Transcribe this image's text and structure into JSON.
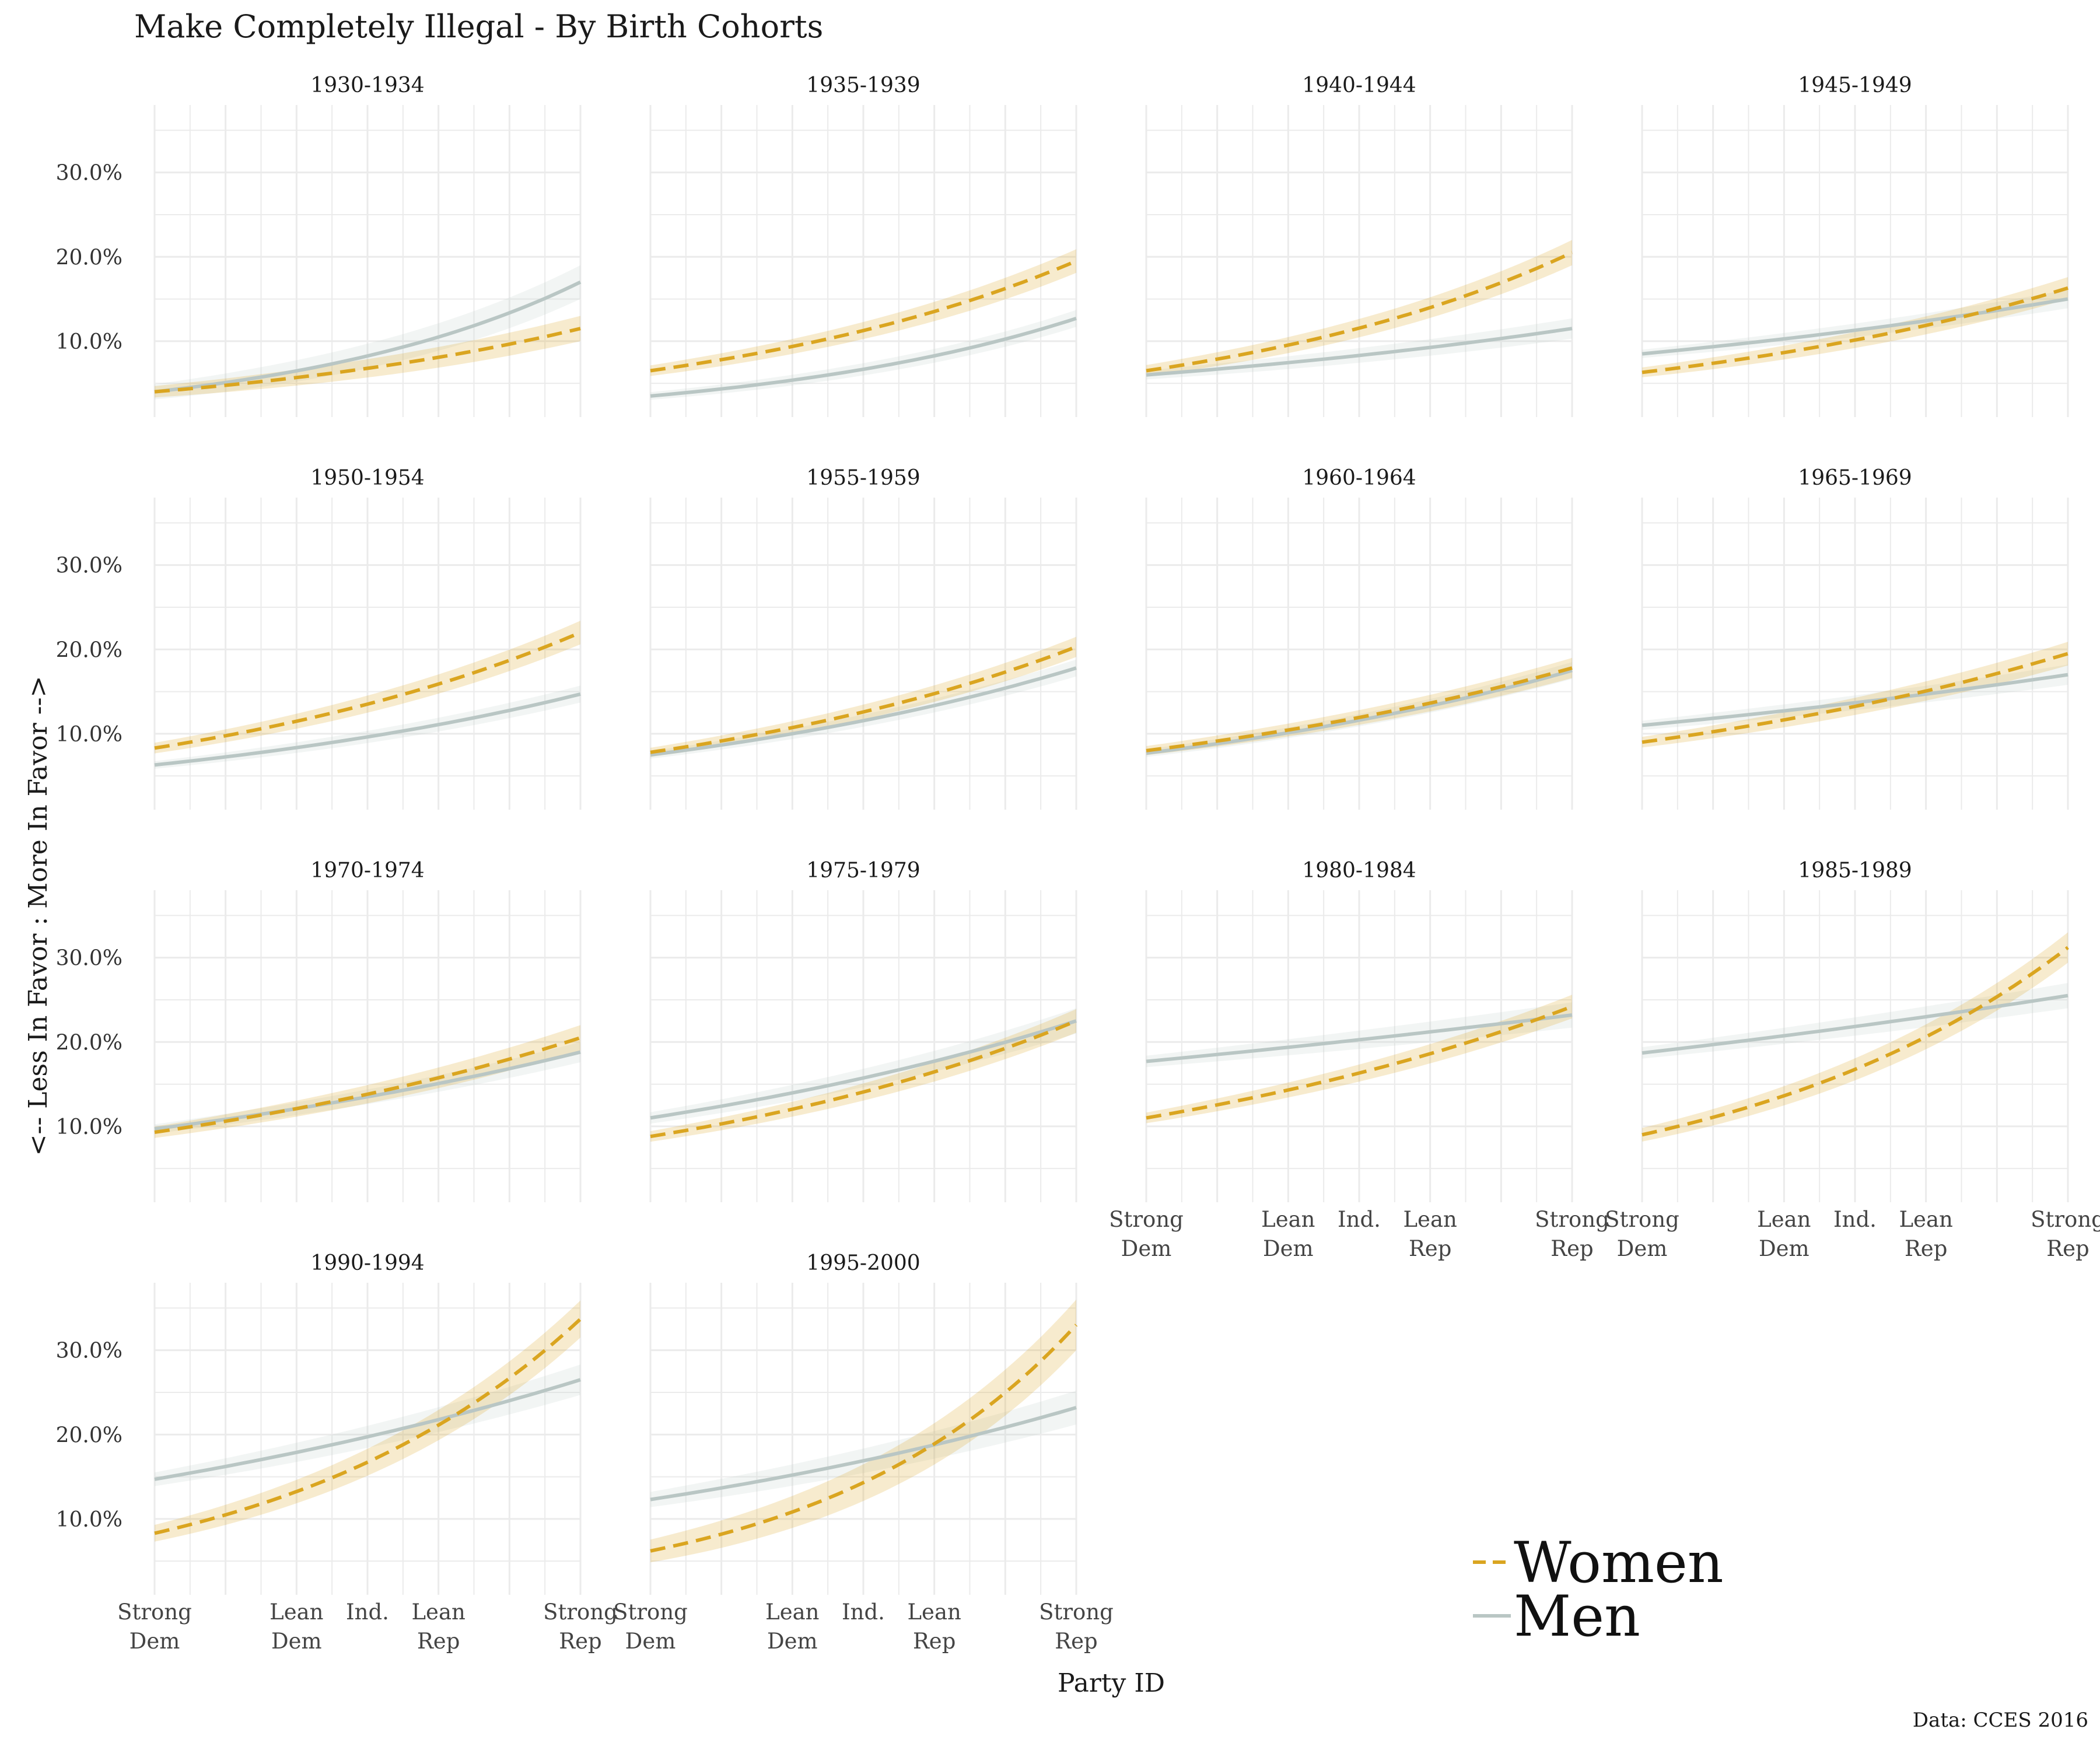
{
  "title": "Make Completely Illegal - By Birth Cohorts",
  "xlabel": "Party ID",
  "ylabel": "<-- Less In Favor : More In Favor -->",
  "caption": "Data: CCES 2016",
  "legend": {
    "women": "Women",
    "men": "Men"
  },
  "colors": {
    "women": "#DAA520",
    "men": "#B9C6C4",
    "grid": "#EBEBEB"
  },
  "chart_data": {
    "type": "line",
    "layout": "facet-grid-4-columns",
    "x_ticks": [
      {
        "x": 1,
        "lines": [
          "Strong",
          "Dem"
        ]
      },
      {
        "x": 3,
        "lines": [
          "Lean",
          "Dem"
        ]
      },
      {
        "x": 4,
        "lines": [
          "Ind.",
          ""
        ]
      },
      {
        "x": 5,
        "lines": [
          "Lean",
          "Rep"
        ]
      },
      {
        "x": 7,
        "lines": [
          "Strong",
          "Rep"
        ]
      }
    ],
    "xlim": [
      1,
      7
    ],
    "y_ticks": [
      0.1,
      0.2,
      0.3
    ],
    "y_tick_labels": [
      "10.0%",
      "20.0%",
      "30.0%"
    ],
    "ylim": [
      0.01,
      0.38
    ],
    "grid": true,
    "legend_position": "bottom-right",
    "series_names": [
      "Women",
      "Men"
    ],
    "facets": [
      {
        "label": "1930-1934",
        "women": [
          0.04,
          0.115
        ],
        "men": [
          0.04,
          0.17
        ],
        "w_band": 0.015,
        "m_band": 0.02
      },
      {
        "label": "1935-1939",
        "women": [
          0.065,
          0.195
        ],
        "men": [
          0.035,
          0.127
        ],
        "w_band": 0.014,
        "m_band": 0.01
      },
      {
        "label": "1940-1944",
        "women": [
          0.065,
          0.205
        ],
        "men": [
          0.06,
          0.115
        ],
        "w_band": 0.015,
        "m_band": 0.012
      },
      {
        "label": "1945-1949",
        "women": [
          0.063,
          0.163
        ],
        "men": [
          0.085,
          0.15
        ],
        "w_band": 0.013,
        "m_band": 0.011
      },
      {
        "label": "1950-1954",
        "women": [
          0.083,
          0.22
        ],
        "men": [
          0.063,
          0.147
        ],
        "w_band": 0.014,
        "m_band": 0.01
      },
      {
        "label": "1955-1959",
        "women": [
          0.078,
          0.203
        ],
        "men": [
          0.075,
          0.178
        ],
        "w_band": 0.012,
        "m_band": 0.01
      },
      {
        "label": "1960-1964",
        "women": [
          0.08,
          0.178
        ],
        "men": [
          0.077,
          0.175
        ],
        "w_band": 0.012,
        "m_band": 0.01
      },
      {
        "label": "1965-1969",
        "women": [
          0.09,
          0.195
        ],
        "men": [
          0.11,
          0.17
        ],
        "w_band": 0.014,
        "m_band": 0.012
      },
      {
        "label": "1970-1974",
        "women": [
          0.093,
          0.205
        ],
        "men": [
          0.097,
          0.188
        ],
        "w_band": 0.015,
        "m_band": 0.012
      },
      {
        "label": "1975-1979",
        "women": [
          0.088,
          0.225
        ],
        "men": [
          0.11,
          0.225
        ],
        "w_band": 0.014,
        "m_band": 0.015
      },
      {
        "label": "1980-1984",
        "women": [
          0.11,
          0.242
        ],
        "men": [
          0.177,
          0.232
        ],
        "w_band": 0.014,
        "m_band": 0.015
      },
      {
        "label": "1985-1989",
        "women": [
          0.09,
          0.312
        ],
        "men": [
          0.187,
          0.255
        ],
        "w_band": 0.018,
        "m_band": 0.015
      },
      {
        "label": "1990-1994",
        "women": [
          0.083,
          0.337
        ],
        "men": [
          0.147,
          0.265
        ],
        "w_band": 0.022,
        "m_band": 0.018
      },
      {
        "label": "1995-2000",
        "women": [
          0.062,
          0.33
        ],
        "men": [
          0.123,
          0.232
        ],
        "w_band": 0.03,
        "m_band": 0.02
      }
    ]
  }
}
